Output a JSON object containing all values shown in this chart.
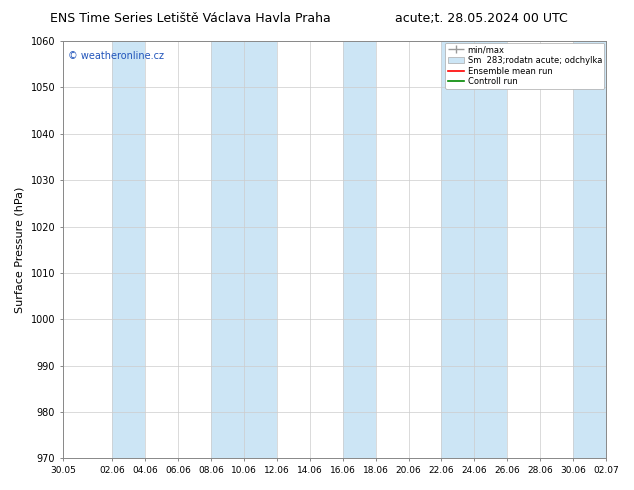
{
  "title_left": "ENS Time Series Letiště Václava Havla Praha",
  "title_right": "acute;t. 28.05.2024 00 UTC",
  "ylabel": "Surface Pressure (hPa)",
  "ylim": [
    970,
    1060
  ],
  "yticks": [
    970,
    980,
    990,
    1000,
    1010,
    1020,
    1030,
    1040,
    1050,
    1060
  ],
  "xtick_labels": [
    "30.05",
    "02.06",
    "04.06",
    "06.06",
    "08.06",
    "10.06",
    "12.06",
    "14.06",
    "16.06",
    "18.06",
    "20.06",
    "22.06",
    "24.06",
    "26.06",
    "28.06",
    "30.06",
    "02.07"
  ],
  "watermark": "© weatheronline.cz",
  "legend_entry_0": "min/max",
  "legend_entry_1": "Sm  283;rodatn acute; odchylka",
  "legend_entry_2": "Ensemble mean run",
  "legend_entry_3": "Controll run",
  "band_color": "#cce5f5",
  "title_fontsize": 9,
  "axis_bg": "#ffffff",
  "fig_bg": "#ffffff",
  "grid_color": "#cccccc",
  "ensemble_mean_color": "#ff0000",
  "control_run_color": "#008800",
  "minmax_color": "#999999",
  "band_starts": [
    "02.06",
    "08.06",
    "10.06",
    "16.06",
    "22.06",
    "24.06",
    "30.06"
  ],
  "band_widths": [
    2,
    2,
    2,
    2,
    2,
    2,
    2
  ]
}
